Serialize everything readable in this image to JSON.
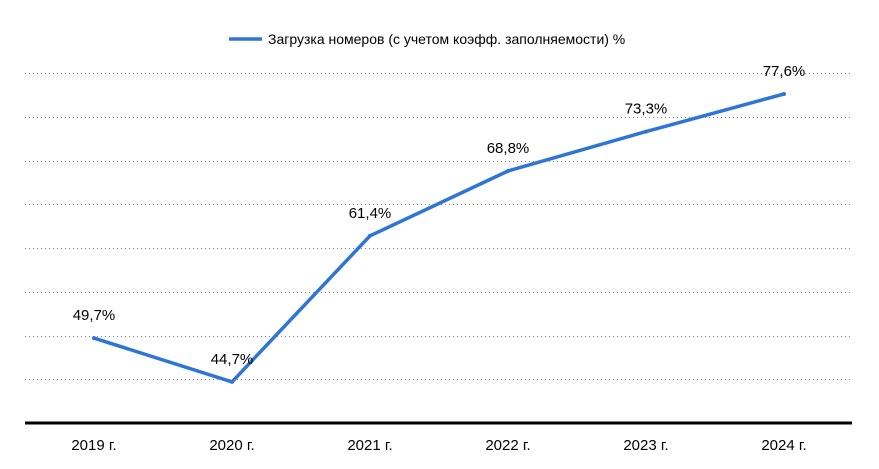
{
  "chart_data": {
    "type": "line",
    "categories": [
      "2019 г.",
      "2020 г.",
      "2021 г.",
      "2022 г.",
      "2023 г.",
      "2024 г."
    ],
    "series": [
      {
        "name": "Загрузка номеров (с учетом коэфф. заполняемости) %",
        "values": [
          49.7,
          44.7,
          61.4,
          68.8,
          73.3,
          77.6
        ],
        "labels": [
          "49,7%",
          "44,7%",
          "61,4%",
          "68,8%",
          "73,3%",
          "77,6%"
        ],
        "color": "#2e75d6"
      }
    ],
    "ylim": [
      40,
      80
    ],
    "grid": true,
    "legend_position": "top-center"
  }
}
